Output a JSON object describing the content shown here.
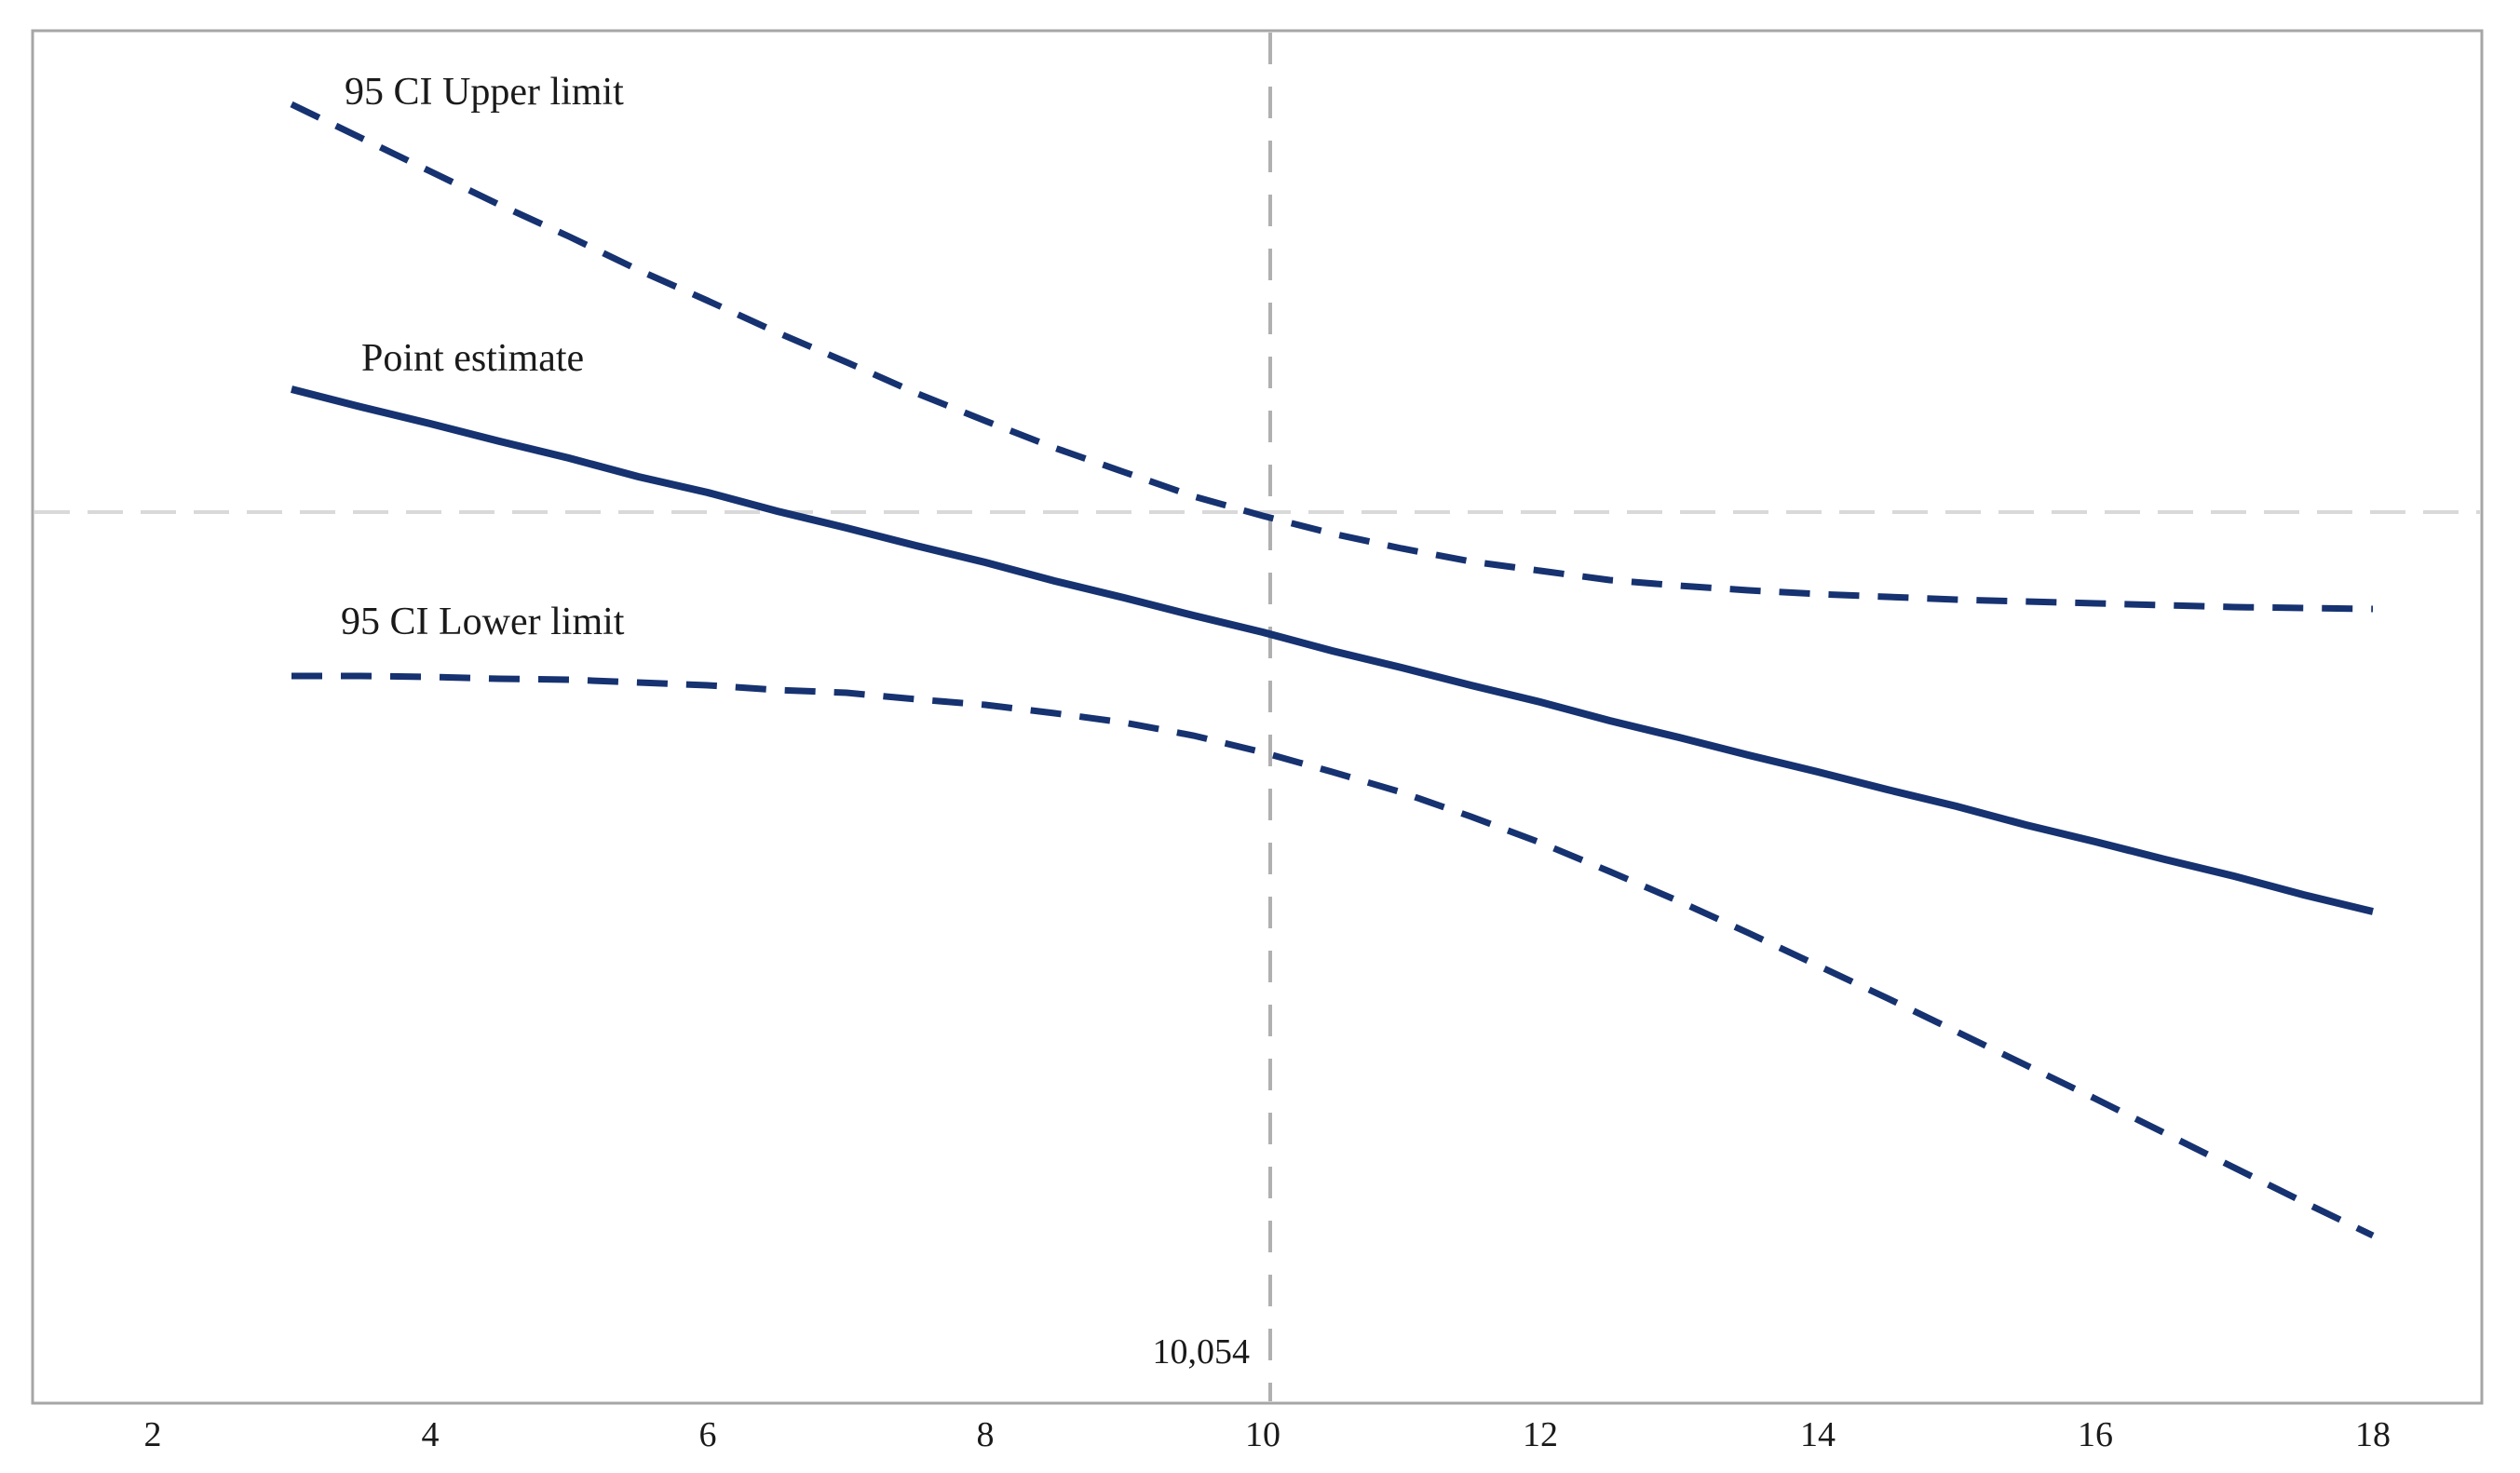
{
  "chart_data": {
    "type": "line",
    "title": "",
    "xlabel": "",
    "ylabel": "",
    "x": [
      3,
      3.5,
      4,
      4.5,
      5,
      5.5,
      6,
      6.5,
      7,
      7.5,
      8,
      8.5,
      9,
      9.5,
      10,
      10.5,
      11,
      11.5,
      12,
      12.5,
      13,
      13.5,
      14,
      14.5,
      15,
      15.5,
      16,
      16.5,
      17,
      17.5,
      18
    ],
    "series": [
      {
        "name": "95 CI Upper limit",
        "style": "dashed",
        "values": [
          4.38,
          4.02,
          3.66,
          3.3,
          2.96,
          2.6,
          2.27,
          1.93,
          1.61,
          1.28,
          0.98,
          0.69,
          0.43,
          0.17,
          -0.04,
          -0.23,
          -0.39,
          -0.53,
          -0.63,
          -0.73,
          -0.79,
          -0.84,
          -0.88,
          -0.91,
          -0.94,
          -0.96,
          -0.98,
          -1.0,
          -1.02,
          -1.03,
          -1.04
        ]
      },
      {
        "name": "Point estimate",
        "style": "solid",
        "values": [
          1.32,
          1.13,
          0.95,
          0.76,
          0.58,
          0.38,
          0.21,
          0.01,
          -0.17,
          -0.36,
          -0.54,
          -0.74,
          -0.92,
          -1.11,
          -1.29,
          -1.49,
          -1.67,
          -1.86,
          -2.04,
          -2.24,
          -2.42,
          -2.61,
          -2.79,
          -2.98,
          -3.16,
          -3.36,
          -3.54,
          -3.73,
          -3.91,
          -4.11,
          -4.29
        ]
      },
      {
        "name": "95 CI Lower limit",
        "style": "dashed",
        "values": [
          -1.76,
          -1.76,
          -1.77,
          -1.79,
          -1.8,
          -1.83,
          -1.86,
          -1.91,
          -1.94,
          -2.01,
          -2.07,
          -2.16,
          -2.26,
          -2.4,
          -2.58,
          -2.79,
          -3.01,
          -3.27,
          -3.55,
          -3.86,
          -4.18,
          -4.52,
          -4.87,
          -5.22,
          -5.58,
          -5.94,
          -6.3,
          -6.67,
          -7.04,
          -7.41,
          -7.77
        ]
      }
    ],
    "x_ticks": [
      2,
      4,
      6,
      8,
      10,
      12,
      14,
      16,
      18
    ],
    "xlim": [
      1.13,
      18.78
    ],
    "ylim": [
      -9.57,
      5.17
    ],
    "y_axis_labeled": false,
    "y_units": "relative scale (horizontal reference line = 0, no tick labels shown)",
    "grid": false,
    "legend_position": "inline-labels",
    "reference_line_y": 0,
    "vline_x": 10.054,
    "vline_label": "10,054",
    "colors": {
      "series_line": "#163270",
      "reference_line": "#d9d9d9",
      "vline": "#b0b0b0",
      "plot_border": "#a6a6a6",
      "text": "#1a1a1a"
    }
  }
}
